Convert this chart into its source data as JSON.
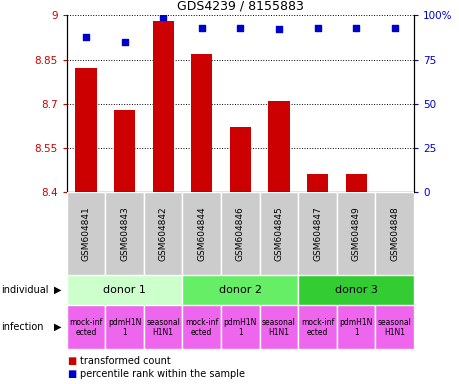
{
  "title": "GDS4239 / 8155883",
  "samples": [
    "GSM604841",
    "GSM604843",
    "GSM604842",
    "GSM604844",
    "GSM604846",
    "GSM604845",
    "GSM604847",
    "GSM604849",
    "GSM604848"
  ],
  "bar_values": [
    8.82,
    8.68,
    8.98,
    8.87,
    8.62,
    8.71,
    8.46,
    8.46,
    8.4
  ],
  "percentile_values": [
    88,
    85,
    99,
    93,
    93,
    92,
    93,
    93,
    93
  ],
  "bar_color": "#cc0000",
  "dot_color": "#0000cc",
  "ylim_left": [
    8.4,
    9.0
  ],
  "ylim_right": [
    0,
    100
  ],
  "yticks_left": [
    8.4,
    8.55,
    8.7,
    8.85,
    9.0
  ],
  "yticks_right": [
    0,
    25,
    50,
    75,
    100
  ],
  "ytick_labels_left": [
    "8.4",
    "8.55",
    "8.7",
    "8.85",
    "9"
  ],
  "ytick_labels_right": [
    "0",
    "25",
    "50",
    "75",
    "100%"
  ],
  "donors": [
    {
      "label": "donor 1",
      "cols": [
        0,
        1,
        2
      ],
      "color": "#ccffcc"
    },
    {
      "label": "donor 2",
      "cols": [
        3,
        4,
        5
      ],
      "color": "#66ee66"
    },
    {
      "label": "donor 3",
      "cols": [
        6,
        7,
        8
      ],
      "color": "#33cc33"
    }
  ],
  "inf_labels": [
    "mock-inf\nected",
    "pdmH1N\n1",
    "seasonal\nH1N1",
    "mock-inf\nected",
    "pdmH1N\n1",
    "seasonal\nH1N1",
    "mock-inf\nected",
    "pdmH1N\n1",
    "seasonal\nH1N1"
  ],
  "inf_color": "#ee66ee",
  "left_label_color": "#cc0000",
  "right_label_color": "#0000cc",
  "grid_color": "#000000",
  "background_color": "#ffffff",
  "sample_bg_color": "#cccccc",
  "fig_w": 4.6,
  "fig_h": 3.84,
  "dpi": 100
}
